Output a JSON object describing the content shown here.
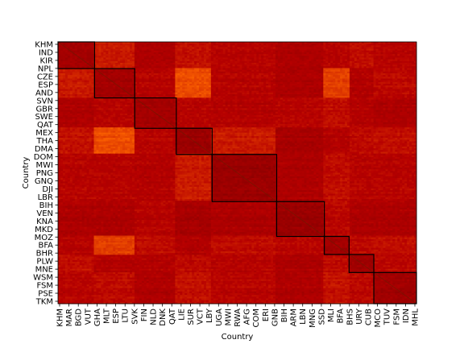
{
  "chart_data": {
    "type": "heatmap",
    "title": "",
    "xlabel": "Country",
    "ylabel": "Country",
    "y_tick_labels": [
      "KHM",
      "IND",
      "KIR",
      "NPL",
      "CZE",
      "ESP",
      "AND",
      "SVN",
      "GBR",
      "SWE",
      "QAT",
      "MEX",
      "THA",
      "DMA",
      "DOM",
      "MWI",
      "PNG",
      "GNQ",
      "DJI",
      "LBR",
      "BIH",
      "VEN",
      "KNA",
      "MKD",
      "MOZ",
      "BFA",
      "BHR",
      "PLW",
      "MNE",
      "WSM",
      "FSM",
      "PSE",
      "TKM"
    ],
    "x_tick_labels": [
      "KHM",
      "MAR",
      "BGD",
      "VUT",
      "GHA",
      "MLT",
      "ESP",
      "LTU",
      "SVK",
      "FIN",
      "NLD",
      "DNK",
      "QAT",
      "LIE",
      "SUR",
      "VCT",
      "LBY",
      "UGA",
      "MWI",
      "RWA",
      "AFG",
      "COM",
      "ERI",
      "GNB",
      "BIH",
      "ARM",
      "LBN",
      "MNG",
      "SSD",
      "MLI",
      "BFA",
      "BHS",
      "URY",
      "CUB",
      "MCO",
      "TUV",
      "FSM",
      "IDN",
      "MHL"
    ],
    "clusters": [
      {
        "start": 0.0,
        "end": 0.102
      },
      {
        "start": 0.102,
        "end": 0.214
      },
      {
        "start": 0.214,
        "end": 0.33
      },
      {
        "start": 0.33,
        "end": 0.43
      },
      {
        "start": 0.43,
        "end": 0.61
      },
      {
        "start": 0.61,
        "end": 0.743
      },
      {
        "start": 0.743,
        "end": 0.812
      },
      {
        "start": 0.812,
        "end": 0.881
      },
      {
        "start": 0.881,
        "end": 1.0
      }
    ],
    "colormap": "gist_heat",
    "grid": false
  }
}
